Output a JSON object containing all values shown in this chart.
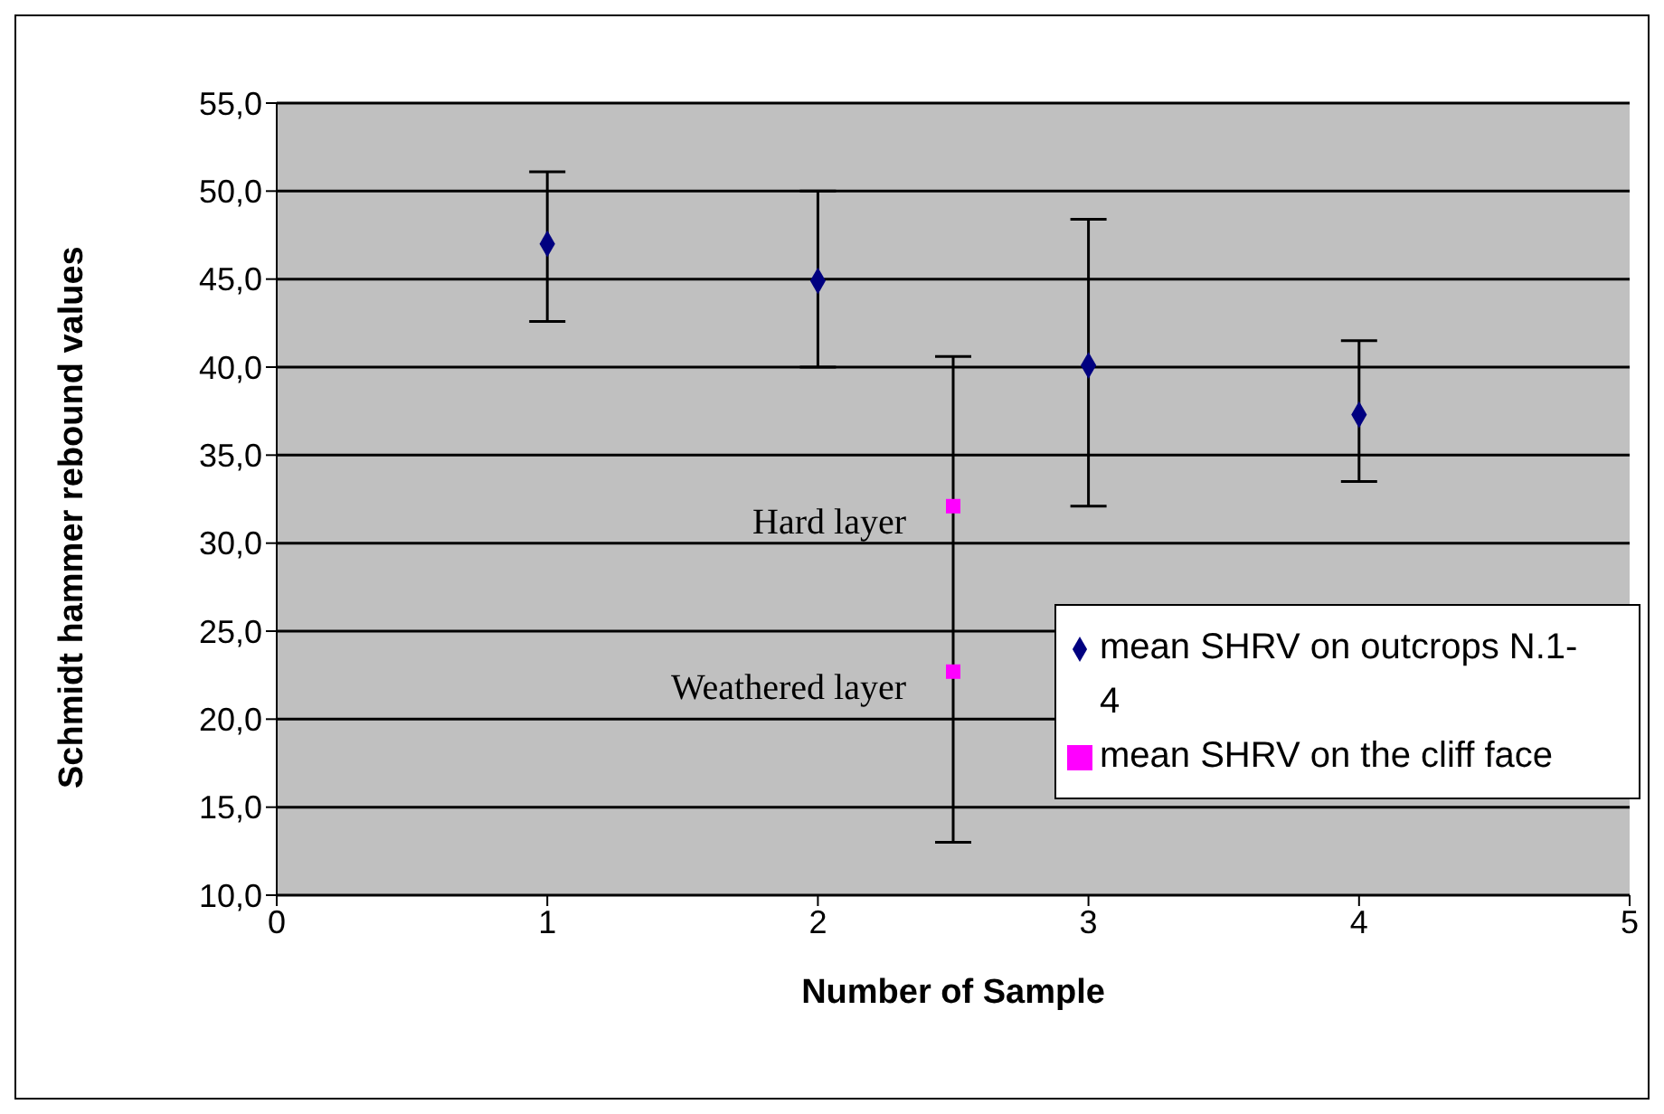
{
  "chart_data": {
    "type": "scatter",
    "xlabel": "Number of Sample",
    "ylabel": "Schmidt hammer rebound values",
    "xlim": [
      0,
      5
    ],
    "xticks": [
      0,
      1,
      2,
      3,
      4,
      5
    ],
    "ylim": [
      10,
      55
    ],
    "yticks": [
      {
        "value": 10,
        "label": "10,0"
      },
      {
        "value": 15,
        "label": "15,0"
      },
      {
        "value": 20,
        "label": "20,0"
      },
      {
        "value": 25,
        "label": "25,0"
      },
      {
        "value": 30,
        "label": "30,0"
      },
      {
        "value": 35,
        "label": "35,0"
      },
      {
        "value": 40,
        "label": "40,0"
      },
      {
        "value": 45,
        "label": "45,0"
      },
      {
        "value": 50,
        "label": "50,0"
      },
      {
        "value": 55,
        "label": "55,0"
      }
    ],
    "grid": "y",
    "legend": "bottom right",
    "series": [
      {
        "name": "mean SHRV on outcrops N.1-4",
        "color": "#000080",
        "marker": "diamond",
        "x": [
          1,
          2,
          3,
          4
        ],
        "values": [
          47.0,
          44.9,
          40.1,
          37.3
        ],
        "errors": [
          [
            42.6,
            51.1
          ],
          [
            40.0,
            50.0
          ],
          [
            32.1,
            48.4
          ],
          [
            33.5,
            41.5
          ]
        ]
      },
      {
        "name": "mean SHRV on the cliff face",
        "color": "#ff00ff",
        "marker": "square",
        "x": [
          2.5,
          2.5
        ],
        "values": [
          32.1,
          22.7
        ],
        "errors": [
          [
            13.0,
            40.6
          ],
          null
        ]
      }
    ],
    "annotations": [
      {
        "text": "Hard layer",
        "x": 2.5,
        "y": 32.1
      },
      {
        "text": "Weathered layer",
        "x": 2.5,
        "y": 22.7
      }
    ]
  }
}
